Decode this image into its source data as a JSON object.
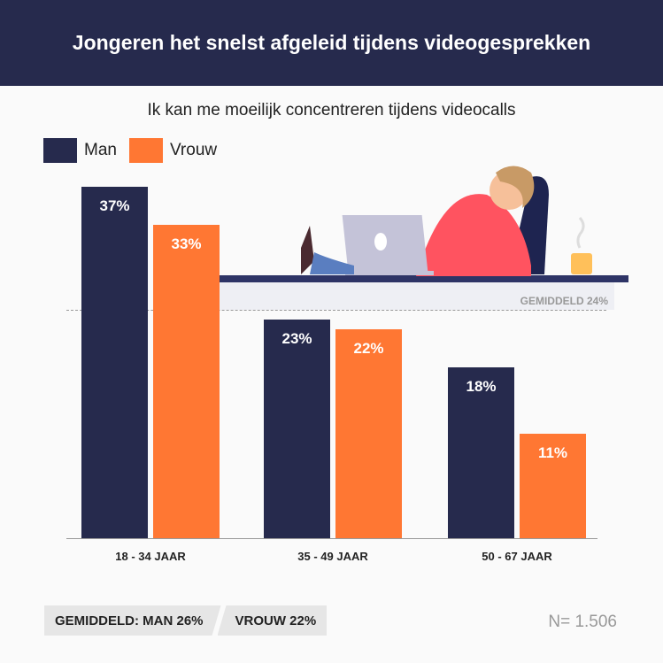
{
  "header": {
    "title": "Jongeren het snelst afgeleid tijdens videogesprekken"
  },
  "chart_data": {
    "type": "bar",
    "title": "Ik kan me moeilijk concentreren tijdens videocalls",
    "categories": [
      "18 - 34 JAAR",
      "35 - 49 JAAR",
      "50 - 67 JAAR"
    ],
    "series": [
      {
        "name": "Man",
        "color": "#262a4d",
        "values": [
          37,
          23,
          18
        ],
        "labels": [
          "37%",
          "23%",
          "18%"
        ]
      },
      {
        "name": "Vrouw",
        "color": "#ff7733",
        "values": [
          33,
          22,
          11
        ],
        "labels": [
          "33%",
          "22%",
          "11%"
        ]
      }
    ],
    "ylim": [
      0,
      37
    ],
    "average": {
      "value": 24,
      "label": "GEMIDDELD 24%"
    },
    "legend": "top-left"
  },
  "footer": {
    "avg_man": "GEMIDDELD:  MAN 26%",
    "avg_vrouw": "VROUW 22%",
    "n": "N= 1.506"
  }
}
